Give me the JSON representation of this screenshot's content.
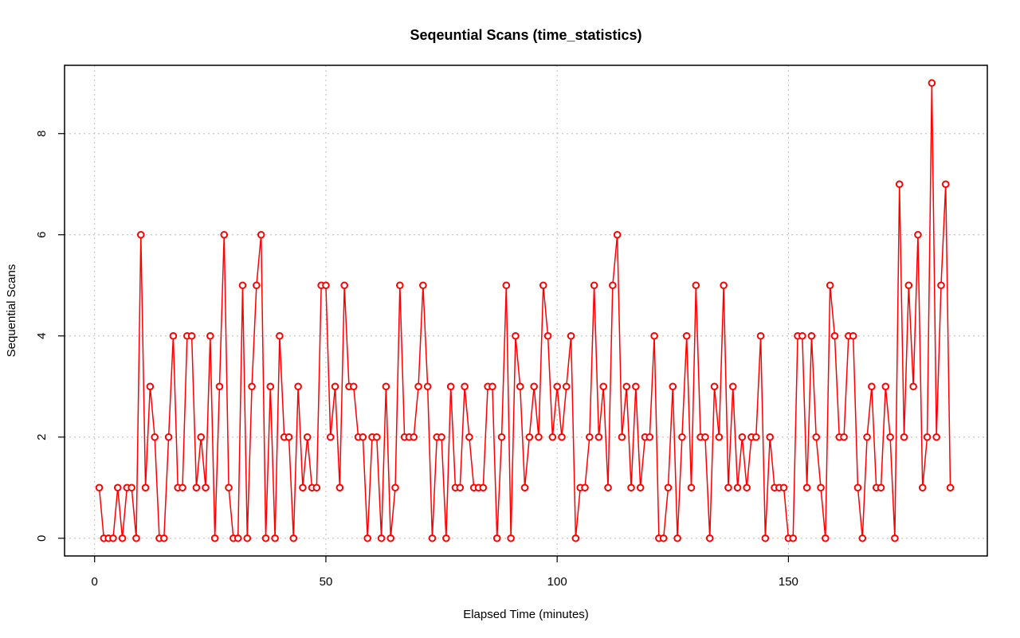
{
  "chart_data": {
    "type": "line",
    "title": "Seqeuntial Scans (time_statistics)",
    "xlabel": "Elapsed Time (minutes)",
    "ylabel": "Sequential Scans",
    "xlim": [
      -6.5,
      193
    ],
    "ylim": [
      -0.35,
      9.35
    ],
    "xticks": [
      0,
      50,
      100,
      150
    ],
    "yticks": [
      0,
      2,
      4,
      6,
      8
    ],
    "grid": true,
    "series_color": "#ff0000",
    "x": [
      1,
      2,
      3,
      4,
      5,
      6,
      7,
      8,
      9,
      10,
      11,
      12,
      13,
      14,
      15,
      16,
      17,
      18,
      19,
      20,
      21,
      22,
      23,
      24,
      25,
      26,
      27,
      28,
      29,
      30,
      31,
      32,
      33,
      34,
      35,
      36,
      37,
      38,
      39,
      40,
      41,
      42,
      43,
      44,
      45,
      46,
      47,
      48,
      49,
      50,
      51,
      52,
      53,
      54,
      55,
      56,
      57,
      58,
      59,
      60,
      61,
      62,
      63,
      64,
      65,
      66,
      67,
      68,
      69,
      70,
      71,
      72,
      73,
      74,
      75,
      76,
      77,
      78,
      79,
      80,
      81,
      82,
      83,
      84,
      85,
      86,
      87,
      88,
      89,
      90,
      91,
      92,
      93,
      94,
      95,
      96,
      97,
      98,
      99,
      100,
      101,
      102,
      103,
      104,
      105,
      106,
      107,
      108,
      109,
      110,
      111,
      112,
      113,
      114,
      115,
      116,
      117,
      118,
      119,
      120,
      121,
      122,
      123,
      124,
      125,
      126,
      127,
      128,
      129,
      130,
      131,
      132,
      133,
      134,
      135,
      136,
      137,
      138,
      139,
      140,
      141,
      142,
      143,
      144,
      145,
      146,
      147,
      148,
      149,
      150,
      151,
      152,
      153,
      154,
      155,
      156,
      157,
      158,
      159,
      160,
      161,
      162,
      163,
      164,
      165,
      166,
      167,
      168,
      169,
      170,
      171,
      172,
      173,
      174,
      175,
      176,
      177,
      178,
      179,
      180,
      181,
      182,
      183,
      184,
      185
    ],
    "values": [
      1,
      0,
      0,
      0,
      1,
      0,
      1,
      1,
      0,
      6,
      1,
      3,
      2,
      0,
      0,
      2,
      4,
      1,
      1,
      4,
      4,
      1,
      2,
      1,
      4,
      0,
      3,
      6,
      1,
      0,
      0,
      5,
      0,
      3,
      5,
      6,
      0,
      3,
      0,
      4,
      2,
      2,
      0,
      3,
      1,
      2,
      1,
      1,
      5,
      5,
      2,
      3,
      1,
      5,
      3,
      3,
      2,
      2,
      0,
      2,
      2,
      0,
      3,
      0,
      1,
      5,
      2,
      2,
      2,
      3,
      5,
      3,
      0,
      2,
      2,
      0,
      3,
      1,
      1,
      3,
      2,
      1,
      1,
      1,
      3,
      3,
      0,
      2,
      5,
      0,
      4,
      3,
      1,
      2,
      3,
      2,
      5,
      4,
      2,
      3,
      2,
      3,
      4,
      0,
      1,
      1,
      2,
      5,
      2,
      3,
      1,
      5,
      6,
      2,
      3,
      1,
      3,
      1,
      2,
      2,
      4,
      0,
      0,
      1,
      3,
      0,
      2,
      4,
      1,
      5,
      2,
      2,
      0,
      3,
      2,
      5,
      1,
      3,
      1,
      2,
      1,
      2,
      2,
      4,
      0,
      2,
      1,
      1,
      1,
      0,
      0,
      4,
      4,
      1,
      4,
      2,
      1,
      0,
      5,
      4,
      2,
      2,
      4,
      4,
      1,
      0,
      2,
      3,
      1,
      1,
      3,
      2,
      0,
      7,
      2,
      5,
      3,
      6,
      1,
      2,
      9,
      2,
      5,
      7,
      1
    ]
  }
}
